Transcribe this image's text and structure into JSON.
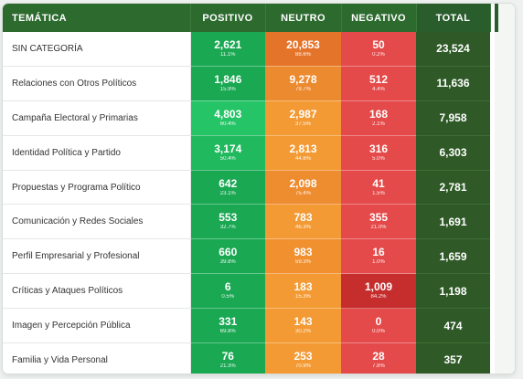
{
  "headers": {
    "topic": "TEMÁTICA",
    "positive": "POSITIVO",
    "neutral": "NEUTRO",
    "negative": "NEGATIVO",
    "total": "TOTAL"
  },
  "rows": [
    {
      "topic": "SIN CATEGORÍA",
      "positive": {
        "value": "2,621",
        "pct": "11.1%",
        "color": "#1aa853"
      },
      "neutral": {
        "value": "20,853",
        "pct": "88.6%",
        "color": "#e5742b"
      },
      "negative": {
        "value": "50",
        "pct": "0.2%",
        "color": "#e54a4a"
      },
      "total": "23,524"
    },
    {
      "topic": "Relaciones con Otros Políticos",
      "positive": {
        "value": "1,846",
        "pct": "15.9%",
        "color": "#1aa853"
      },
      "neutral": {
        "value": "9,278",
        "pct": "79.7%",
        "color": "#ec8a2f"
      },
      "negative": {
        "value": "512",
        "pct": "4.4%",
        "color": "#e54a4a"
      },
      "total": "11,636"
    },
    {
      "topic": "Campaña Electoral y Primarias",
      "positive": {
        "value": "4,803",
        "pct": "60.4%",
        "color": "#25c567"
      },
      "neutral": {
        "value": "2,987",
        "pct": "37.5%",
        "color": "#f39a34"
      },
      "negative": {
        "value": "168",
        "pct": "2.1%",
        "color": "#e54a4a"
      },
      "total": "7,958"
    },
    {
      "topic": "Identidad Política y Partido",
      "positive": {
        "value": "3,174",
        "pct": "50.4%",
        "color": "#20b95e"
      },
      "neutral": {
        "value": "2,813",
        "pct": "44.6%",
        "color": "#f39a34"
      },
      "negative": {
        "value": "316",
        "pct": "5.0%",
        "color": "#e54a4a"
      },
      "total": "6,303"
    },
    {
      "topic": "Propuestas y Programa Político",
      "positive": {
        "value": "642",
        "pct": "23.1%",
        "color": "#1aa853"
      },
      "neutral": {
        "value": "2,098",
        "pct": "75.4%",
        "color": "#ee8c30"
      },
      "negative": {
        "value": "41",
        "pct": "1.5%",
        "color": "#e54a4a"
      },
      "total": "2,781"
    },
    {
      "topic": "Comunicación y Redes Sociales",
      "positive": {
        "value": "553",
        "pct": "32.7%",
        "color": "#1aa853"
      },
      "neutral": {
        "value": "783",
        "pct": "46.3%",
        "color": "#f39a34"
      },
      "negative": {
        "value": "355",
        "pct": "21.0%",
        "color": "#e54a4a"
      },
      "total": "1,691"
    },
    {
      "topic": "Perfil Empresarial y Profesional",
      "positive": {
        "value": "660",
        "pct": "39.8%",
        "color": "#1aa853"
      },
      "neutral": {
        "value": "983",
        "pct": "59.3%",
        "color": "#f0902f"
      },
      "negative": {
        "value": "16",
        "pct": "1.0%",
        "color": "#e54a4a"
      },
      "total": "1,659"
    },
    {
      "topic": "Críticas y Ataques Políticos",
      "positive": {
        "value": "6",
        "pct": "0.5%",
        "color": "#1aa853"
      },
      "neutral": {
        "value": "183",
        "pct": "15.3%",
        "color": "#f39a34"
      },
      "negative": {
        "value": "1,009",
        "pct": "84.2%",
        "color": "#c62e2e"
      },
      "total": "1,198"
    },
    {
      "topic": "Imagen y Percepción Pública",
      "positive": {
        "value": "331",
        "pct": "69.8%",
        "color": "#1aa853"
      },
      "neutral": {
        "value": "143",
        "pct": "30.2%",
        "color": "#f39a34"
      },
      "negative": {
        "value": "0",
        "pct": "0.0%",
        "color": "#e54a4a"
      },
      "total": "474"
    },
    {
      "topic": "Familia y Vida Personal",
      "positive": {
        "value": "76",
        "pct": "21.3%",
        "color": "#1aa853"
      },
      "neutral": {
        "value": "253",
        "pct": "70.9%",
        "color": "#f39a34"
      },
      "negative": {
        "value": "28",
        "pct": "7.8%",
        "color": "#e54a4a"
      },
      "total": "357"
    }
  ]
}
